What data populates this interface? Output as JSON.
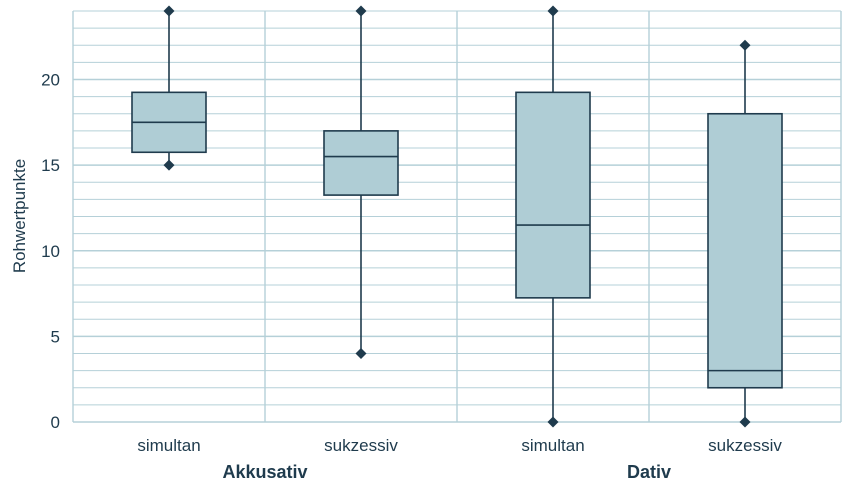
{
  "chart_data": {
    "type": "boxplot",
    "ylabel": "Rohwertpunkte",
    "ylim": [
      0,
      24
    ],
    "yticks": [
      0,
      5,
      10,
      15,
      20
    ],
    "minor_step": 1,
    "grid": true,
    "categories": [
      "simultan",
      "sukzessiv",
      "simultan",
      "sukzessiv"
    ],
    "groups": [
      {
        "label": "Akkusativ",
        "category_indices": [
          0,
          1
        ]
      },
      {
        "label": "Dativ",
        "category_indices": [
          2,
          3
        ]
      }
    ],
    "boxes": [
      {
        "category": "simultan",
        "group": "Akkusativ",
        "whisker_low": 15,
        "q1": 15.75,
        "median": 17.5,
        "q3": 19.25,
        "whisker_high": 24
      },
      {
        "category": "sukzessiv",
        "group": "Akkusativ",
        "whisker_low": 4,
        "q1": 13.25,
        "median": 15.5,
        "q3": 17,
        "whisker_high": 24
      },
      {
        "category": "simultan",
        "group": "Dativ",
        "whisker_low": 0,
        "q1": 7.25,
        "median": 11.5,
        "q3": 19.25,
        "whisker_high": 24
      },
      {
        "category": "sukzessiv",
        "group": "Dativ",
        "whisker_low": 0,
        "q1": 2,
        "median": 3,
        "q3": 18,
        "whisker_high": 22
      }
    ],
    "colors": {
      "box_fill": "#afcdd5",
      "stroke": "#1f3b4d",
      "grid": "#b5d0d8",
      "text": "#1f3b4d"
    }
  }
}
